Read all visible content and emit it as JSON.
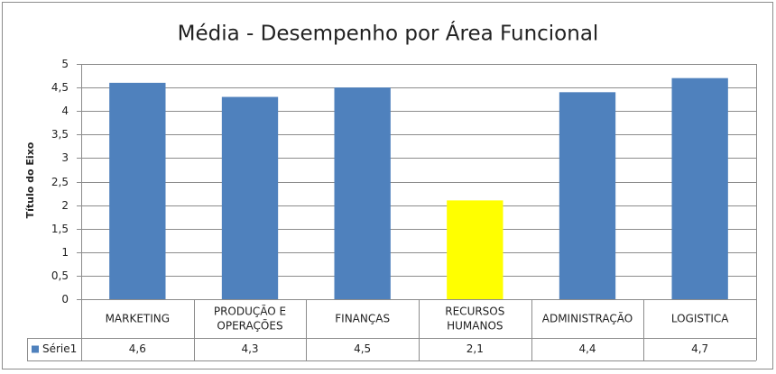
{
  "chart_data": {
    "type": "bar",
    "title": "Média - Desempenho por Área Funcional",
    "y_axis_label": "Título do Eixo",
    "categories": [
      "MARKETING",
      "PRODUÇÃO E OPERAÇÕES",
      "FINANÇAS",
      "RECURSOS HUMANOS",
      "ADMINISTRAÇÃO",
      "LOGISTICA"
    ],
    "series": [
      {
        "name": "Série1",
        "color": "#4f81bd",
        "point_colors": [
          "#4f81bd",
          "#4f81bd",
          "#4f81bd",
          "#ffff00",
          "#4f81bd",
          "#4f81bd"
        ],
        "values": [
          4.6,
          4.3,
          4.5,
          2.1,
          4.4,
          4.7
        ],
        "value_labels": [
          "4,6",
          "4,3",
          "4,5",
          "2,1",
          "4,4",
          "4,7"
        ]
      }
    ],
    "ylim": [
      0,
      5
    ],
    "yticks": [
      0,
      {
        "value": 0.5,
        "label": "0,5"
      },
      1,
      {
        "value": 1.5,
        "label": "1,5"
      },
      2,
      {
        "value": 2.5,
        "label": "2,5"
      },
      3,
      {
        "value": 3.5,
        "label": "3,5"
      },
      4,
      {
        "value": 4.5,
        "label": "4,5"
      },
      5
    ],
    "grid": true,
    "data_table": true
  }
}
